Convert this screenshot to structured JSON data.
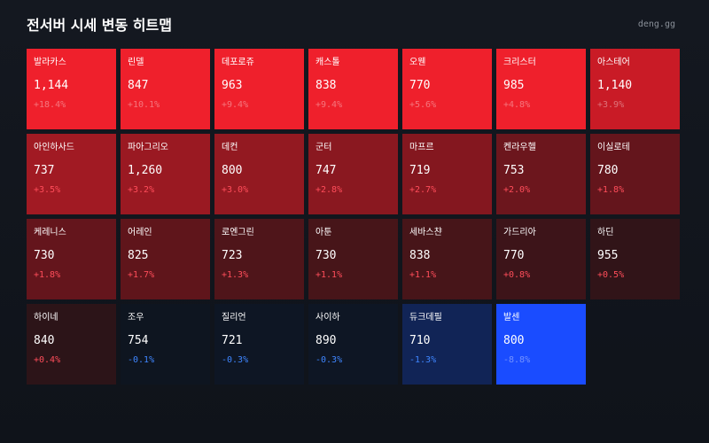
{
  "header": {
    "title": "전서버 시세 변동 히트맵",
    "brand": "deng.gg"
  },
  "cells": [
    {
      "name": "발라카스",
      "price": "1,144",
      "change": "+18.4%",
      "bg": "#ef202c",
      "tone": "faint"
    },
    {
      "name": "린델",
      "price": "847",
      "change": "+10.1%",
      "bg": "#ef202c",
      "tone": "faint"
    },
    {
      "name": "데포로쥬",
      "price": "963",
      "change": "+9.4%",
      "bg": "#ef202c",
      "tone": "faint"
    },
    {
      "name": "캐스톨",
      "price": "838",
      "change": "+9.4%",
      "bg": "#ef202c",
      "tone": "faint"
    },
    {
      "name": "오웬",
      "price": "770",
      "change": "+5.6%",
      "bg": "#ef202c",
      "tone": "faint"
    },
    {
      "name": "크리스터",
      "price": "985",
      "change": "+4.8%",
      "bg": "#ef202c",
      "tone": "faint"
    },
    {
      "name": "아스테어",
      "price": "1,140",
      "change": "+3.9%",
      "bg": "#c91b26",
      "tone": "faint"
    },
    {
      "name": "아인하사드",
      "price": "737",
      "change": "+3.5%",
      "bg": "#a11a23",
      "tone": "up"
    },
    {
      "name": "파아그리오",
      "price": "1,260",
      "change": "+3.2%",
      "bg": "#9a1922",
      "tone": "up"
    },
    {
      "name": "데컨",
      "price": "800",
      "change": "+3.0%",
      "bg": "#931921",
      "tone": "up"
    },
    {
      "name": "군터",
      "price": "747",
      "change": "+2.8%",
      "bg": "#8a1820",
      "tone": "up"
    },
    {
      "name": "마프르",
      "price": "719",
      "change": "+2.7%",
      "bg": "#84171f",
      "tone": "up"
    },
    {
      "name": "켄라우헬",
      "price": "753",
      "change": "+2.0%",
      "bg": "#6c161d",
      "tone": "up"
    },
    {
      "name": "이실로테",
      "price": "780",
      "change": "+1.8%",
      "bg": "#64151c",
      "tone": "up"
    },
    {
      "name": "케레니스",
      "price": "730",
      "change": "+1.8%",
      "bg": "#64151c",
      "tone": "up"
    },
    {
      "name": "어레인",
      "price": "825",
      "change": "+1.7%",
      "bg": "#5f151b",
      "tone": "up"
    },
    {
      "name": "로엔그린",
      "price": "723",
      "change": "+1.3%",
      "bg": "#4f151a",
      "tone": "up"
    },
    {
      "name": "아툰",
      "price": "730",
      "change": "+1.1%",
      "bg": "#471519",
      "tone": "up"
    },
    {
      "name": "세바스챤",
      "price": "838",
      "change": "+1.1%",
      "bg": "#471519",
      "tone": "up"
    },
    {
      "name": "가드리아",
      "price": "770",
      "change": "+0.8%",
      "bg": "#3d1419",
      "tone": "up"
    },
    {
      "name": "하딘",
      "price": "955",
      "change": "+0.5%",
      "bg": "#311418",
      "tone": "up"
    },
    {
      "name": "하이네",
      "price": "840",
      "change": "+0.4%",
      "bg": "#2c1418",
      "tone": "up"
    },
    {
      "name": "조우",
      "price": "754",
      "change": "-0.1%",
      "bg": "#0e1520",
      "tone": "down"
    },
    {
      "name": "질리언",
      "price": "721",
      "change": "-0.3%",
      "bg": "#0e1624",
      "tone": "down"
    },
    {
      "name": "사이하",
      "price": "890",
      "change": "-0.3%",
      "bg": "#0e1624",
      "tone": "down"
    },
    {
      "name": "듀크데필",
      "price": "710",
      "change": "-1.3%",
      "bg": "#112456",
      "tone": "down"
    },
    {
      "name": "발센",
      "price": "800",
      "change": "-8.8%",
      "bg": "#1a4cff",
      "tone": "faint"
    }
  ]
}
